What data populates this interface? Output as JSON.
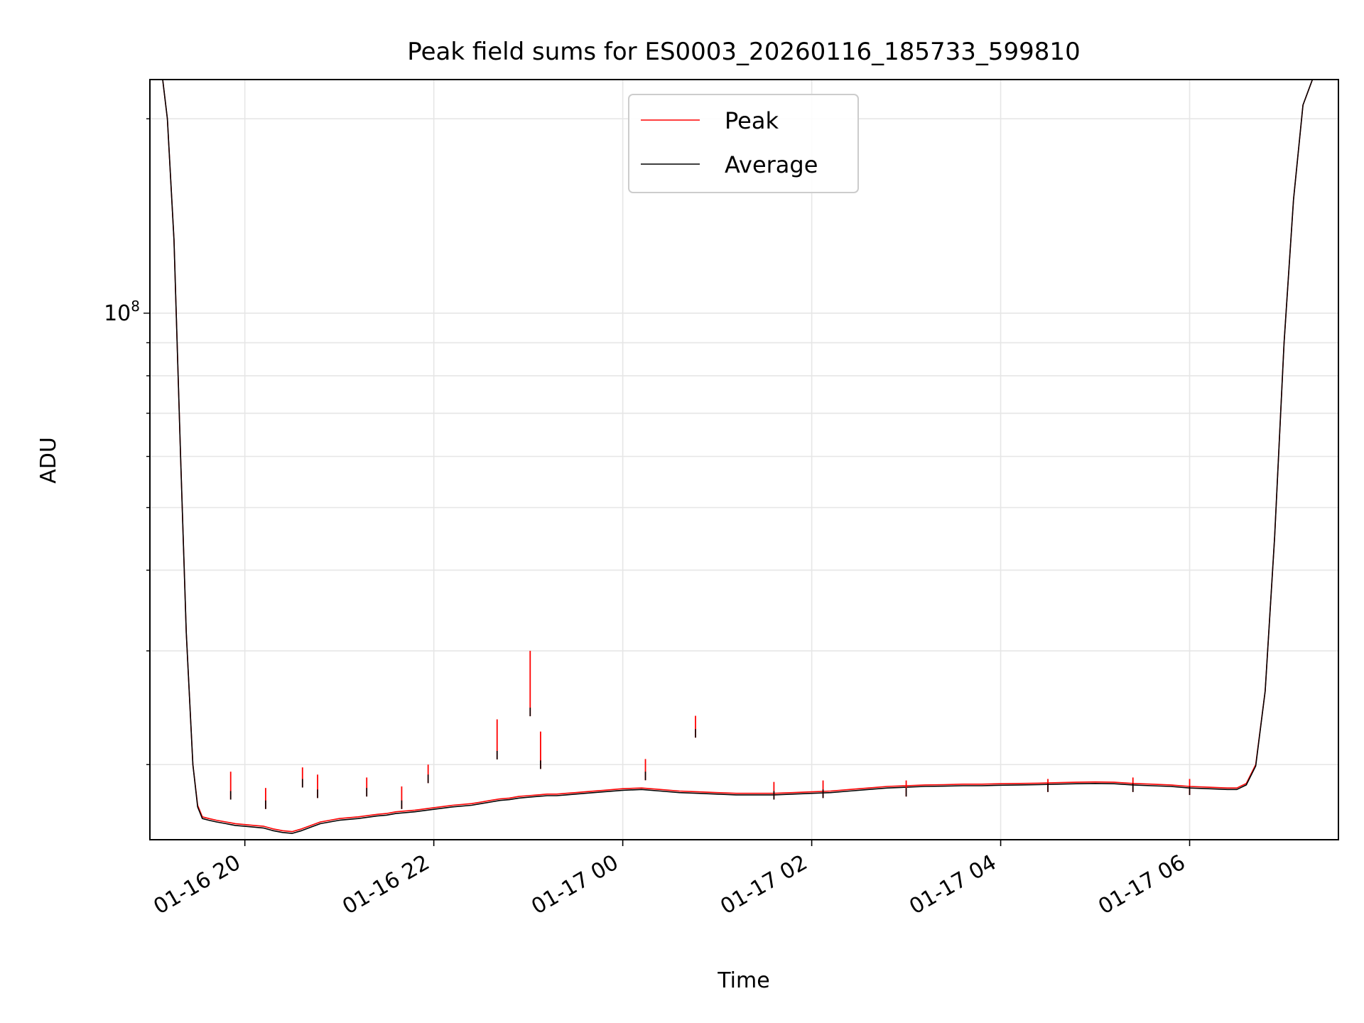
{
  "chart_data": {
    "type": "line",
    "title": "Peak field sums for ES0003_20260116_185733_599810",
    "xlabel": "Time",
    "ylabel": "ADU",
    "yscale": "log",
    "grid": true,
    "legend_position": "top-center",
    "x_unit": "hours since 01-16 00:00",
    "xlim": [
      18.995,
      31.575
    ],
    "ylim": [
      15300000,
      230000000
    ],
    "x_ticks": [
      {
        "value": 20,
        "label": "01-16 20"
      },
      {
        "value": 22,
        "label": "01-16 22"
      },
      {
        "value": 24,
        "label": "01-17 00"
      },
      {
        "value": 26,
        "label": "01-17 02"
      },
      {
        "value": 28,
        "label": "01-17 04"
      },
      {
        "value": 30,
        "label": "01-17 06"
      }
    ],
    "y_major_ticks": [
      {
        "value": 100000000,
        "base": "10",
        "exponent": "8"
      }
    ],
    "y_minor_ticks": [
      20000000,
      30000000,
      40000000,
      50000000,
      60000000,
      70000000,
      80000000,
      90000000,
      200000000
    ],
    "series": [
      {
        "name": "Peak",
        "color": "#ff0000",
        "x": [
          19.13,
          19.18,
          19.25,
          19.32,
          19.38,
          19.45,
          19.5,
          19.55,
          19.62,
          19.7,
          19.8,
          19.85,
          19.9,
          20.0,
          20.1,
          20.2,
          20.3,
          20.4,
          20.5,
          20.6,
          20.7,
          20.8,
          20.9,
          21.0,
          21.2,
          21.4,
          21.5,
          21.6,
          21.8,
          22.0,
          22.2,
          22.4,
          22.5,
          22.6,
          22.7,
          22.8,
          22.9,
          23.0,
          23.1,
          23.2,
          23.3,
          23.4,
          23.5,
          23.6,
          23.8,
          24.0,
          24.2,
          24.4,
          24.6,
          24.8,
          25.0,
          25.2,
          25.4,
          25.6,
          25.8,
          26.0,
          26.2,
          26.4,
          26.6,
          26.8,
          27.0,
          27.2,
          27.4,
          27.6,
          27.8,
          28.0,
          28.2,
          28.4,
          28.6,
          28.8,
          29.0,
          29.2,
          29.4,
          29.6,
          29.8,
          30.0,
          30.2,
          30.4,
          30.5,
          30.6,
          30.7,
          30.8,
          30.9,
          31.0,
          31.1,
          31.2,
          31.3,
          31.35,
          31.4
        ],
        "y": [
          230000000,
          200000000,
          130000000,
          60000000,
          32000000,
          20000000,
          17300000,
          16600000,
          16500000,
          16400000,
          16300000,
          16250000,
          16200000,
          16150000,
          16100000,
          16050000,
          15900000,
          15800000,
          15750000,
          15900000,
          16100000,
          16300000,
          16400000,
          16500000,
          16600000,
          16750000,
          16800000,
          16900000,
          17000000,
          17150000,
          17300000,
          17400000,
          17500000,
          17600000,
          17700000,
          17750000,
          17850000,
          17900000,
          17950000,
          18000000,
          18000000,
          18050000,
          18100000,
          18150000,
          18250000,
          18350000,
          18400000,
          18300000,
          18200000,
          18150000,
          18100000,
          18050000,
          18050000,
          18050000,
          18100000,
          18150000,
          18200000,
          18300000,
          18400000,
          18500000,
          18550000,
          18600000,
          18620000,
          18650000,
          18650000,
          18680000,
          18700000,
          18720000,
          18750000,
          18780000,
          18800000,
          18780000,
          18700000,
          18650000,
          18600000,
          18500000,
          18450000,
          18400000,
          18400000,
          18700000,
          20000000,
          26000000,
          45000000,
          90000000,
          150000000,
          210000000,
          230000000,
          230000000,
          230000000
        ]
      },
      {
        "name": "Average",
        "color": "#000000",
        "x": [
          19.13,
          19.18,
          19.25,
          19.32,
          19.38,
          19.45,
          19.5,
          19.55,
          19.62,
          19.7,
          19.8,
          19.85,
          19.9,
          20.0,
          20.1,
          20.2,
          20.3,
          20.4,
          20.5,
          20.6,
          20.7,
          20.8,
          20.9,
          21.0,
          21.2,
          21.4,
          21.5,
          21.6,
          21.8,
          22.0,
          22.2,
          22.4,
          22.5,
          22.6,
          22.7,
          22.8,
          22.9,
          23.0,
          23.1,
          23.2,
          23.3,
          23.4,
          23.5,
          23.6,
          23.8,
          24.0,
          24.2,
          24.4,
          24.6,
          24.8,
          25.0,
          25.2,
          25.4,
          25.6,
          25.8,
          26.0,
          26.2,
          26.4,
          26.6,
          26.8,
          27.0,
          27.2,
          27.4,
          27.6,
          27.8,
          28.0,
          28.2,
          28.4,
          28.6,
          28.8,
          29.0,
          29.2,
          29.4,
          29.6,
          29.8,
          30.0,
          30.2,
          30.4,
          30.5,
          30.6,
          30.7,
          30.8,
          30.9,
          31.0,
          31.1,
          31.2,
          31.3,
          31.35,
          31.4
        ],
        "y": [
          230000000,
          200000000,
          130000000,
          60000000,
          32000000,
          20000000,
          17200000,
          16500000,
          16400000,
          16300000,
          16200000,
          16150000,
          16100000,
          16050000,
          16000000,
          15950000,
          15800000,
          15700000,
          15650000,
          15800000,
          16000000,
          16200000,
          16300000,
          16400000,
          16500000,
          16650000,
          16700000,
          16800000,
          16900000,
          17050000,
          17200000,
          17300000,
          17400000,
          17500000,
          17600000,
          17650000,
          17750000,
          17800000,
          17850000,
          17900000,
          17900000,
          17950000,
          18000000,
          18050000,
          18150000,
          18250000,
          18300000,
          18200000,
          18100000,
          18050000,
          18000000,
          17950000,
          17950000,
          17950000,
          18000000,
          18050000,
          18100000,
          18200000,
          18300000,
          18400000,
          18450000,
          18500000,
          18520000,
          18550000,
          18550000,
          18580000,
          18600000,
          18620000,
          18650000,
          18680000,
          18700000,
          18680000,
          18600000,
          18550000,
          18500000,
          18400000,
          18350000,
          18300000,
          18300000,
          18600000,
          19900000,
          26000000,
          45000000,
          90000000,
          150000000,
          210000000,
          230000000,
          230000000,
          230000000
        ]
      }
    ],
    "spikes": [
      {
        "x": 19.85,
        "peak": 19500000,
        "avg": 18200000
      },
      {
        "x": 20.22,
        "peak": 18400000,
        "avg": 17600000
      },
      {
        "x": 20.61,
        "peak": 19800000,
        "avg": 19000000
      },
      {
        "x": 20.77,
        "peak": 19300000,
        "avg": 18300000
      },
      {
        "x": 21.29,
        "peak": 19100000,
        "avg": 18400000
      },
      {
        "x": 21.66,
        "peak": 18500000,
        "avg": 17600000
      },
      {
        "x": 21.94,
        "peak": 20000000,
        "avg": 19300000
      },
      {
        "x": 22.67,
        "peak": 23500000,
        "avg": 21000000
      },
      {
        "x": 23.02,
        "peak": 30000000,
        "avg": 24500000
      },
      {
        "x": 23.13,
        "peak": 22500000,
        "avg": 20300000
      },
      {
        "x": 24.24,
        "peak": 20400000,
        "avg": 19500000
      },
      {
        "x": 24.77,
        "peak": 23800000,
        "avg": 22700000
      },
      {
        "x": 25.6,
        "peak": 18800000,
        "avg": 18200000
      },
      {
        "x": 26.12,
        "peak": 18900000,
        "avg": 18300000
      },
      {
        "x": 27.0,
        "peak": 18900000,
        "avg": 18400000
      },
      {
        "x": 28.5,
        "peak": 19000000,
        "avg": 18700000
      },
      {
        "x": 29.4,
        "peak": 19100000,
        "avg": 18700000
      },
      {
        "x": 30.0,
        "peak": 19000000,
        "avg": 18500000
      }
    ],
    "legend": [
      {
        "label": "Peak",
        "color": "#ff0000"
      },
      {
        "label": "Average",
        "color": "#000000"
      }
    ]
  }
}
